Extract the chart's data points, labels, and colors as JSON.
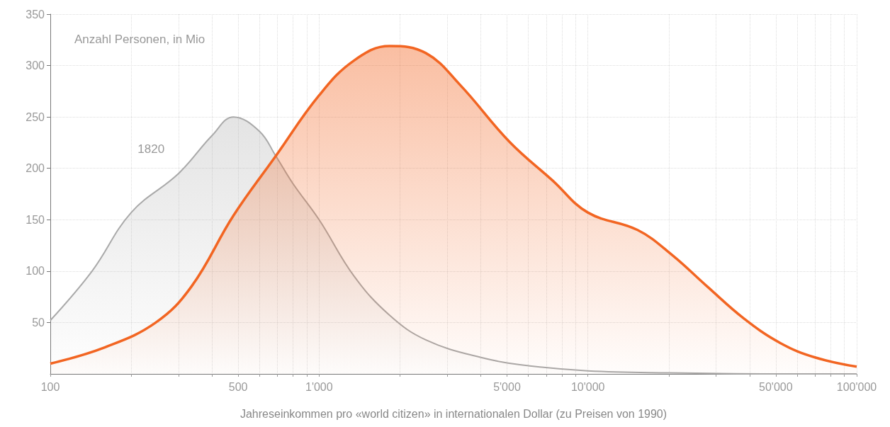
{
  "chart_data": {
    "type": "area",
    "ylabel": "Anzahl Personen, in Mio",
    "xlabel": "Jahreseinkommen pro «world citizen» in internationalen Dollar (zu Preisen von 1990)",
    "log": "x",
    "grid": true,
    "legend": false,
    "marker": "none",
    "xlim": [
      100,
      100000
    ],
    "ylim": [
      0,
      350
    ],
    "xticks": [
      100,
      {
        "value": 200,
        "label": null
      },
      {
        "value": 300,
        "label": null
      },
      {
        "value": 400,
        "label": null
      },
      500,
      {
        "value": 600,
        "label": null
      },
      {
        "value": 700,
        "label": null
      },
      {
        "value": 800,
        "label": null
      },
      {
        "value": 900,
        "label": null
      },
      {
        "value": 1000,
        "label": "1'000"
      },
      {
        "value": 2000,
        "label": null
      },
      {
        "value": 3000,
        "label": null
      },
      {
        "value": 4000,
        "label": null
      },
      {
        "value": 5000,
        "label": "5'000"
      },
      {
        "value": 6000,
        "label": null
      },
      {
        "value": 7000,
        "label": null
      },
      {
        "value": 8000,
        "label": null
      },
      {
        "value": 9000,
        "label": null
      },
      {
        "value": 10000,
        "label": "10'000"
      },
      {
        "value": 20000,
        "label": null
      },
      {
        "value": 30000,
        "label": null
      },
      {
        "value": 40000,
        "label": null
      },
      {
        "value": 50000,
        "label": "50'000"
      },
      {
        "value": 60000,
        "label": null
      },
      {
        "value": 70000,
        "label": null
      },
      {
        "value": 80000,
        "label": null
      },
      {
        "value": 90000,
        "label": null
      },
      {
        "value": 100000,
        "label": "100'000"
      }
    ],
    "yticks": [
      50,
      100,
      150,
      200,
      250,
      300,
      350
    ],
    "series": [
      {
        "name": "1820",
        "color": "#a9a9a9",
        "x": [
          100,
          143,
          200,
          300,
          400,
          480,
          600,
          690,
          800,
          1000,
          1350,
          1830,
          2500,
          4000,
          6000,
          10000,
          20000,
          50000,
          100000
        ],
        "values": [
          52,
          100,
          157,
          195,
          232,
          250,
          236,
          212,
          185,
          150,
          95,
          57,
          33,
          16,
          8,
          3,
          1,
          0,
          0
        ]
      },
      {
        "color": "#f26522",
        "x": [
          100,
          160,
          247,
          335,
          480,
          690,
          1000,
          1350,
          1830,
          2500,
          3350,
          5100,
          7400,
          10000,
          15300,
          20500,
          27800,
          38000,
          52000,
          70000,
          100000
        ],
        "values": [
          10,
          26,
          50,
          85,
          154,
          212,
          271,
          305,
          319,
          312,
          281,
          226,
          188,
          157,
          140,
          116,
          85,
          54,
          30,
          16,
          7
        ]
      }
    ]
  }
}
